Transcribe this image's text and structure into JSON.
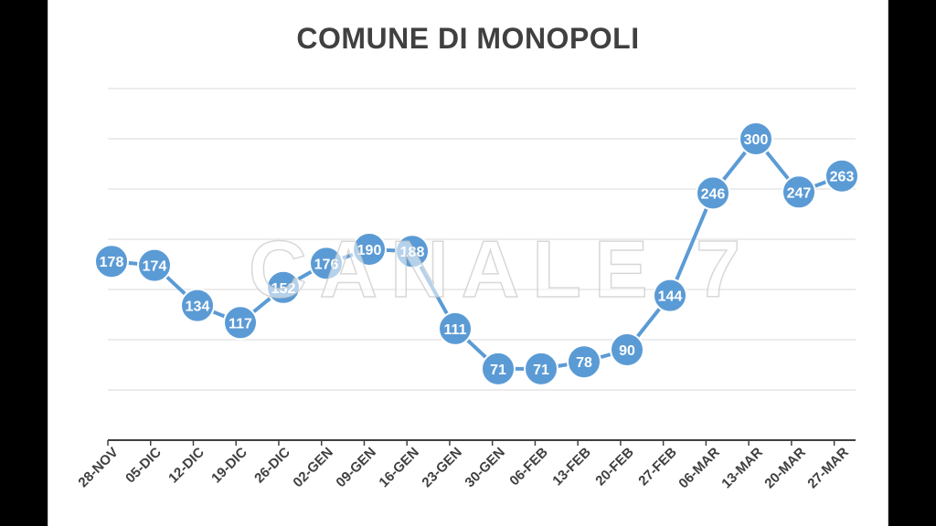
{
  "watermark": "CANALE 7",
  "chart_data": {
    "type": "line",
    "title": "COMUNE DI MONOPOLI",
    "xlabel": "",
    "ylabel": "",
    "ylim": [
      0,
      350
    ],
    "grid": true,
    "legend": "none",
    "categories": [
      "28-NOV",
      "05-DIC",
      "12-DIC",
      "19-DIC",
      "26-DIC",
      "02-GEN",
      "09-GEN",
      "16-GEN",
      "23-GEN",
      "30-GEN",
      "06-FEB",
      "13-FEB",
      "20-FEB",
      "27-FEB",
      "06-MAR",
      "13-MAR",
      "20-MAR",
      "27-MAR"
    ],
    "series": [
      {
        "values": [
          178,
          174,
          134,
          117,
          152,
          176,
          190,
          188,
          111,
          71,
          71,
          78,
          90,
          144,
          246,
          300,
          247,
          263
        ],
        "color": "#5b9bd5"
      }
    ],
    "data_labels": true,
    "colors": {
      "line": "#5b9bd5",
      "marker_fill": "#5b9bd5",
      "marker_stroke": "#ffffff",
      "label": "#ffffff",
      "grid": "#d9d9d9",
      "axis": "#404040"
    }
  }
}
